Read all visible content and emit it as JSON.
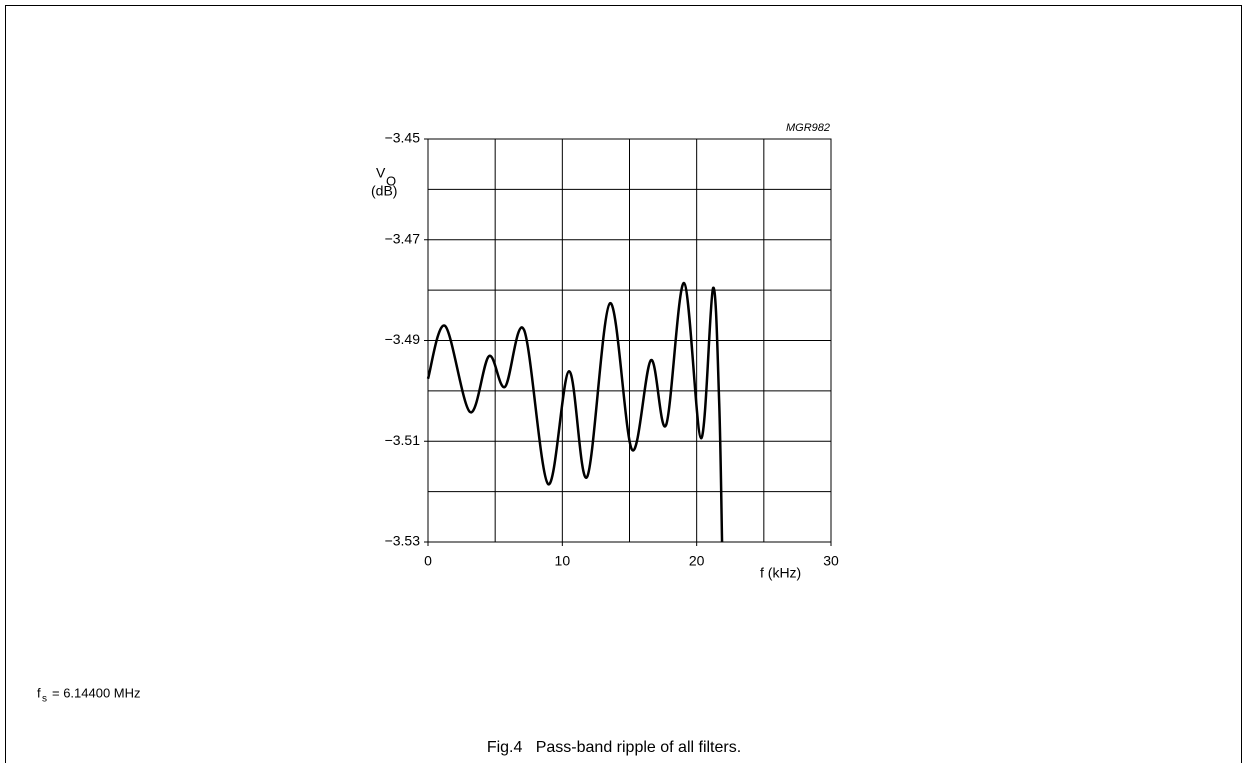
{
  "chart_data": {
    "type": "line",
    "figure_code": "MGR982",
    "y_label": "V",
    "y_label_sub": "O",
    "y_unit": "(dB)",
    "x_label": "f (kHz)",
    "note": {
      "symbol": "f",
      "sub": "s",
      "text": "= 6.14400 MHz"
    },
    "caption": "Fig.4   Pass-band ripple of all filters.",
    "xlim": [
      0,
      30
    ],
    "ylim": [
      -3.53,
      -3.45
    ],
    "xticks": [
      0,
      10,
      20,
      30
    ],
    "yticks": [
      {
        "value": -3.45,
        "label": "−3.45"
      },
      {
        "value": -3.47,
        "label": "−3.47"
      },
      {
        "value": -3.49,
        "label": "−3.49"
      },
      {
        "value": -3.51,
        "label": "−3.51"
      },
      {
        "value": -3.53,
        "label": "−3.53"
      }
    ],
    "xgrid": [
      5,
      10,
      15,
      20,
      25
    ],
    "ygrid": [
      -3.46,
      -3.47,
      -3.48,
      -3.49,
      -3.5,
      -3.51,
      -3.52
    ],
    "grid": true,
    "series": [
      {
        "color": "#000000",
        "x": [
          0,
          1.27,
          3.13,
          4.54,
          5.73,
          7.15,
          8.94,
          10.5,
          11.84,
          13.55,
          15.19,
          16.6,
          17.72,
          19.06,
          20.33,
          21.22,
          21.67,
          21.89
        ],
        "values": [
          -3.4976,
          -3.4871,
          -3.5042,
          -3.4931,
          -3.4992,
          -3.4879,
          -3.5185,
          -3.4961,
          -3.5171,
          -3.4826,
          -3.5117,
          -3.4939,
          -3.5068,
          -3.4786,
          -3.5094,
          -3.4796,
          -3.5018,
          -3.53
        ]
      }
    ]
  }
}
